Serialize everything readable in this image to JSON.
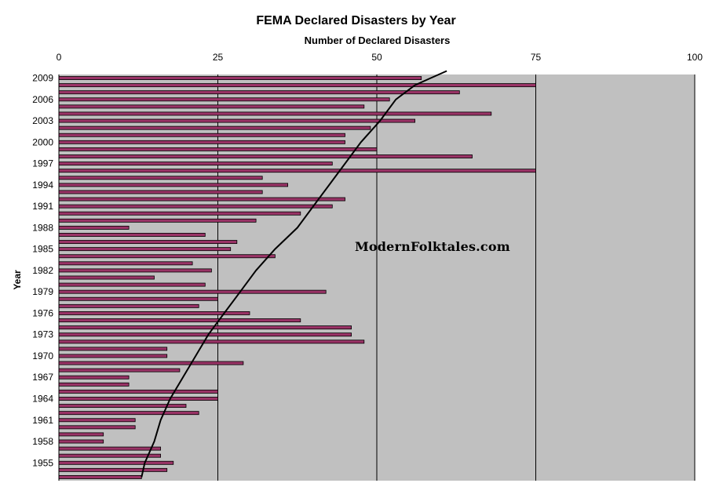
{
  "chart_data": {
    "type": "bar",
    "orientation": "horizontal",
    "title": "FEMA Declared Disasters by Year",
    "xlabel": "Number of Declared Disasters",
    "ylabel": "Year",
    "xlim": [
      0,
      100
    ],
    "x_ticks": [
      0,
      25,
      50,
      75,
      100
    ],
    "y_tick_labels": [
      "2009",
      "2006",
      "2003",
      "2000",
      "1997",
      "1994",
      "1991",
      "1988",
      "1985",
      "1982",
      "1979",
      "1976",
      "1973",
      "1970",
      "1967",
      "1964",
      "1961",
      "1958",
      "1955"
    ],
    "categories": [
      2009,
      2008,
      2007,
      2006,
      2005,
      2004,
      2003,
      2002,
      2001,
      2000,
      1999,
      1998,
      1997,
      1996,
      1995,
      1994,
      1993,
      1992,
      1991,
      1990,
      1989,
      1988,
      1987,
      1986,
      1985,
      1984,
      1983,
      1982,
      1981,
      1980,
      1979,
      1978,
      1977,
      1976,
      1975,
      1974,
      1973,
      1972,
      1971,
      1970,
      1969,
      1968,
      1967,
      1966,
      1965,
      1964,
      1963,
      1962,
      1961,
      1960,
      1959,
      1958,
      1957,
      1956,
      1955,
      1954,
      1953
    ],
    "values": [
      57,
      75,
      63,
      52,
      48,
      68,
      56,
      49,
      45,
      45,
      50,
      65,
      43,
      75,
      32,
      36,
      32,
      45,
      43,
      38,
      31,
      11,
      23,
      28,
      27,
      34,
      21,
      24,
      15,
      23,
      42,
      25,
      22,
      30,
      38,
      46,
      46,
      48,
      17,
      17,
      29,
      19,
      11,
      11,
      25,
      25,
      20,
      22,
      12,
      12,
      7,
      7,
      16,
      16,
      18,
      17,
      13
    ],
    "trendline": {
      "type": "curve",
      "points": [
        [
          13,
          1953
        ],
        [
          13.5,
          1955
        ],
        [
          15,
          1958
        ],
        [
          16,
          1961
        ],
        [
          17.5,
          1964
        ],
        [
          19.5,
          1967
        ],
        [
          21.5,
          1970
        ],
        [
          23.5,
          1973
        ],
        [
          26,
          1976
        ],
        [
          28.5,
          1979
        ],
        [
          31,
          1982
        ],
        [
          34,
          1985
        ],
        [
          37.5,
          1988
        ],
        [
          40,
          1991
        ],
        [
          42.5,
          1994
        ],
        [
          45,
          1997
        ],
        [
          47.5,
          2000
        ],
        [
          50.5,
          2003
        ],
        [
          53,
          2006
        ],
        [
          56,
          2008
        ],
        [
          58.5,
          2009
        ],
        [
          61,
          2010
        ]
      ]
    },
    "grid": true,
    "legend": "none",
    "colors": {
      "bar_fill": "#993366",
      "bar_stroke": "#000000",
      "plot_background": "#c0c0c0",
      "trendline": "#000000",
      "gridline": "#000000"
    }
  },
  "watermark": "ModernFolktales.com"
}
